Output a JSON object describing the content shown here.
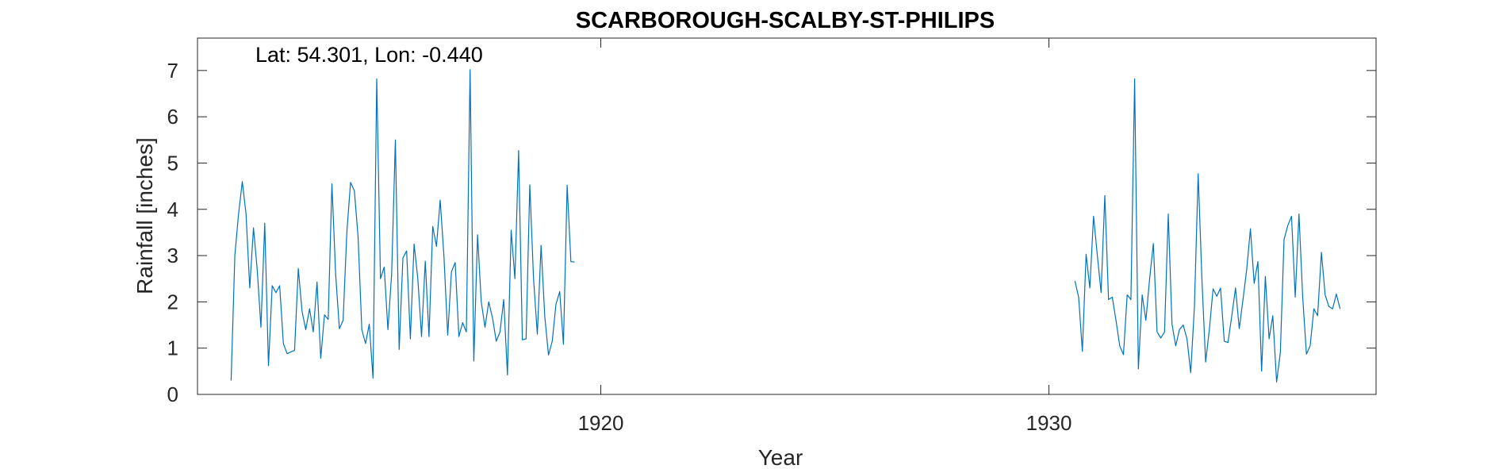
{
  "chart_data": {
    "type": "line",
    "title": "SCARBOROUGH-SCALBY-ST-PHILIPS",
    "xlabel": "Year",
    "ylabel": "Rainfall [inches]",
    "annotation": "Lat: 54.301, Lon: -0.440",
    "xlim": [
      1911,
      1937.3
    ],
    "ylim": [
      0,
      7.7
    ],
    "xticks": [
      1920,
      1930
    ],
    "yticks": [
      0,
      1,
      2,
      3,
      4,
      5,
      6,
      7
    ],
    "grid": false,
    "legend": "none",
    "series_color": "#0072BD",
    "series": [
      {
        "segments": [
          {
            "start_year": 1911.75,
            "step": 0.08333,
            "values": [
              0.3,
              3.0,
              3.9,
              4.6,
              3.9,
              2.3,
              3.6,
              2.7,
              1.45,
              3.7,
              0.62,
              2.35,
              2.2,
              2.35,
              1.1,
              0.88,
              0.92,
              0.95,
              2.72,
              1.8,
              1.4,
              1.85,
              1.35,
              2.43,
              0.78,
              1.72,
              1.62,
              4.55,
              2.6,
              1.42,
              1.6,
              3.5,
              4.58,
              4.4,
              3.4,
              1.4,
              1.1,
              1.52,
              0.35,
              6.82,
              2.5,
              2.75,
              1.4,
              2.6,
              5.5,
              0.97,
              2.95,
              3.1,
              1.2,
              3.25,
              2.5,
              1.25,
              2.88,
              1.25,
              3.63,
              3.2,
              4.2,
              3.0,
              1.28,
              2.65,
              2.85,
              1.25,
              1.55,
              1.35,
              7.02,
              0.72,
              3.45,
              2.0,
              1.45,
              2.0,
              1.65,
              1.15,
              1.35,
              2.05,
              0.42,
              3.55,
              2.5,
              5.27,
              1.18,
              1.2,
              4.53,
              2.5,
              1.3,
              3.22,
              1.68,
              0.85,
              1.15,
              1.95,
              2.22,
              1.08,
              4.52,
              2.87,
              2.86
            ]
          },
          {
            "start_year": 1930.58,
            "step": 0.08333,
            "values": [
              2.45,
              2.1,
              0.93,
              3.03,
              2.3,
              3.85,
              3.0,
              2.2,
              4.3,
              2.05,
              2.1,
              1.6,
              1.05,
              0.86,
              2.15,
              2.05,
              6.82,
              0.55,
              2.15,
              1.6,
              2.5,
              3.26,
              1.35,
              1.22,
              1.35,
              3.9,
              1.52,
              1.05,
              1.4,
              1.5,
              1.2,
              0.47,
              1.9,
              4.77,
              2.5,
              0.7,
              1.4,
              2.28,
              2.12,
              2.3,
              1.15,
              1.12,
              1.7,
              2.3,
              1.42,
              2.05,
              2.7,
              3.58,
              2.4,
              2.87,
              0.5,
              2.55,
              1.2,
              1.7,
              0.27,
              0.9,
              3.35,
              3.65,
              3.85,
              2.1,
              3.9,
              2.1,
              0.87,
              1.05,
              1.85,
              1.7,
              3.07,
              2.15,
              1.9,
              1.85,
              2.17,
              1.85
            ]
          }
        ]
      }
    ]
  }
}
